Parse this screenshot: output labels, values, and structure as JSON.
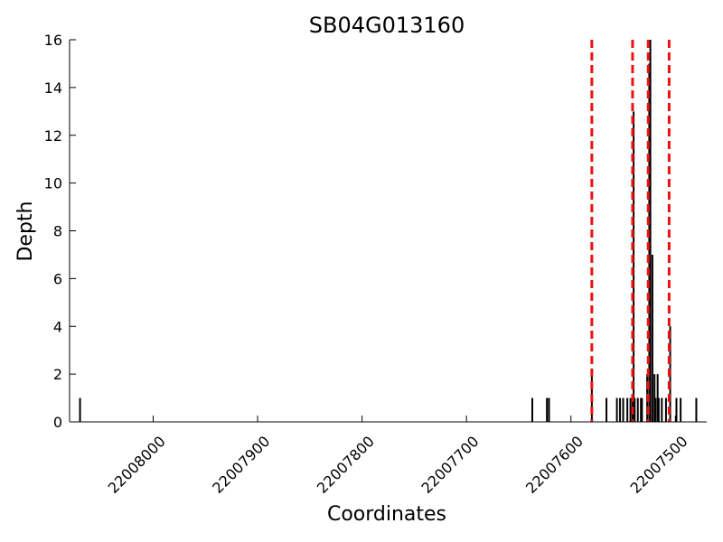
{
  "chart_data": {
    "type": "bar",
    "title": "SB04G013160",
    "xlabel": "Coordinates",
    "ylabel": "Depth",
    "xlim": [
      22008080,
      22007470
    ],
    "ylim": [
      0,
      16
    ],
    "x_inverted": true,
    "grid": false,
    "legend": "none",
    "xticks": [
      22008000,
      22007900,
      22007800,
      22007700,
      22007600,
      22007500
    ],
    "xtick_labels": [
      "22008000",
      "22007900",
      "22007800",
      "22007700",
      "22007600",
      "22007500"
    ],
    "yticks": [
      0,
      2,
      4,
      6,
      8,
      10,
      12,
      14,
      16
    ],
    "ytick_labels": [
      "0",
      "2",
      "4",
      "6",
      "8",
      "10",
      "12",
      "14",
      "16"
    ],
    "series": [
      {
        "color": "#000000",
        "x": [
          22008070,
          22007637,
          22007623,
          22007621,
          22007580,
          22007566,
          22007556,
          22007553,
          22007550,
          22007546,
          22007543,
          22007541,
          22007540,
          22007539,
          22007536,
          22007533,
          22007532,
          22007527,
          22007525,
          22007524,
          22007522,
          22007520,
          22007519,
          22007517,
          22007516,
          22007513,
          22007509,
          22007505,
          22007499,
          22007495,
          22007480
        ],
        "values": [
          1,
          1,
          1,
          1,
          2,
          1,
          1,
          1,
          1,
          1,
          1,
          1,
          13,
          1,
          1,
          1,
          1,
          2,
          15,
          16,
          7,
          2,
          1,
          2,
          1,
          1,
          1,
          4,
          1,
          1,
          1
        ]
      }
    ],
    "vlines": {
      "color": "#ee1111",
      "style": "dashed",
      "x": [
        22007580,
        22007541,
        22007526,
        22007506
      ]
    }
  }
}
